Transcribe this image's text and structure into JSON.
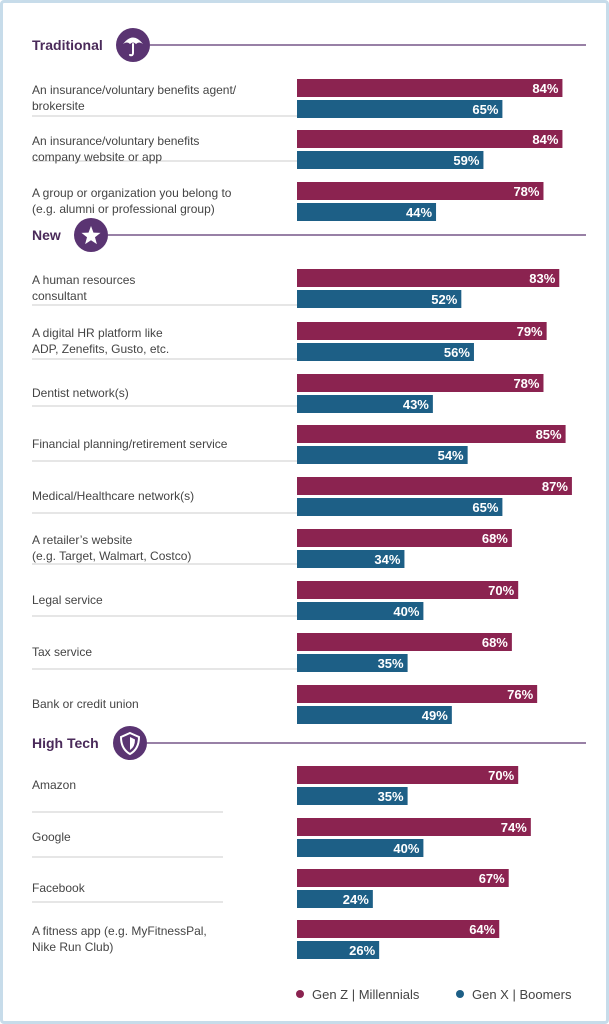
{
  "colors": {
    "gen_z_millennials": "#8b2350",
    "gen_x_boomers": "#1d5f86",
    "section": "#5a3472",
    "divider": "#cccccc"
  },
  "legend": {
    "series1": "Gen Z | Millennials",
    "series2": "Gen X | Boomers"
  },
  "chart_data": {
    "type": "bar",
    "orientation": "horizontal",
    "value_format": "percent",
    "xlim": [
      0,
      100
    ],
    "series_names": [
      "Gen Z | Millennials",
      "Gen X | Boomers"
    ],
    "sections": [
      {
        "title": "Traditional",
        "icon": "umbrella-icon",
        "rows": [
          {
            "label": [
              "An insurance/voluntary benefits agent/",
              "brokersite"
            ],
            "values": [
              84,
              65
            ]
          },
          {
            "label": [
              "An insurance/voluntary benefits",
              "company website or app"
            ],
            "values": [
              84,
              59
            ]
          },
          {
            "label": [
              "A group or organization you belong to",
              "(e.g. alumni or professional group)"
            ],
            "values": [
              78,
              44
            ]
          }
        ]
      },
      {
        "title": "New",
        "icon": "star-icon",
        "rows": [
          {
            "label": [
              "A human resources",
              "consultant"
            ],
            "values": [
              83,
              52
            ]
          },
          {
            "label": [
              "A digital HR platform like",
              "ADP, Zenefits, Gusto, etc."
            ],
            "values": [
              79,
              56
            ]
          },
          {
            "label": [
              "Dentist network(s)"
            ],
            "values": [
              78,
              43
            ]
          },
          {
            "label": [
              "Financial planning/retirement service"
            ],
            "values": [
              85,
              54
            ]
          },
          {
            "label": [
              "Medical/Healthcare network(s)"
            ],
            "values": [
              87,
              65
            ]
          },
          {
            "label": [
              "A retailer’s website",
              "(e.g. Target, Walmart, Costco)"
            ],
            "values": [
              68,
              34
            ]
          },
          {
            "label": [
              "Legal service"
            ],
            "values": [
              70,
              40
            ]
          },
          {
            "label": [
              "Tax service"
            ],
            "values": [
              68,
              35
            ]
          },
          {
            "label": [
              "Bank or credit union"
            ],
            "values": [
              76,
              49
            ]
          }
        ]
      },
      {
        "title": "High Tech",
        "icon": "shield-icon",
        "rows": [
          {
            "label": [
              "Amazon"
            ],
            "values": [
              70,
              35
            ]
          },
          {
            "label": [
              "Google"
            ],
            "values": [
              74,
              40
            ]
          },
          {
            "label": [
              "Facebook"
            ],
            "values": [
              67,
              24
            ]
          },
          {
            "label": [
              "A fitness app (e.g. MyFitnessPal,",
              "Nike Run Club)"
            ],
            "values": [
              64,
              26
            ]
          }
        ]
      }
    ]
  }
}
